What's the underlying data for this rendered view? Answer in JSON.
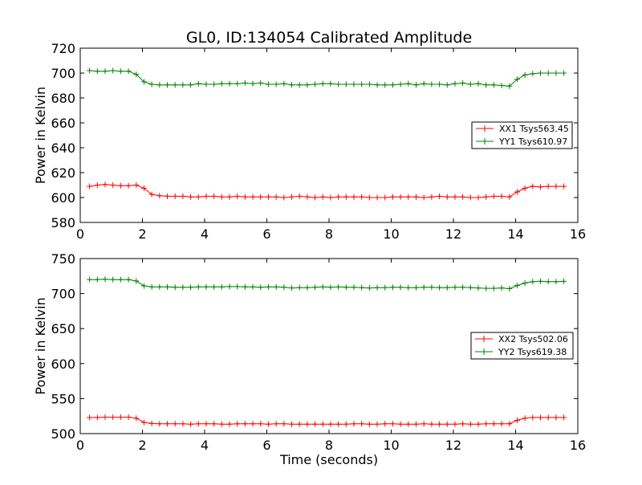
{
  "figure": {
    "title": "GL0, ID:134054 Calibrated Amplitude",
    "xlabel": "Time (seconds)"
  },
  "chart_data": [
    {
      "type": "line",
      "ylabel": "Power in Kelvin",
      "xlim": [
        0,
        16
      ],
      "ylim": [
        580,
        720
      ],
      "xticks": [
        0,
        2,
        4,
        6,
        8,
        10,
        12,
        14,
        16
      ],
      "yticks": [
        580,
        600,
        620,
        640,
        660,
        680,
        700,
        720
      ],
      "grid": false,
      "legend_position": "right",
      "series": [
        {
          "name": "XX1 Tsys563.45",
          "color": "#ff0000",
          "marker": "plus",
          "x": [
            0.3,
            0.55,
            0.8,
            1.05,
            1.3,
            1.55,
            1.8,
            2.05,
            2.3,
            2.55,
            2.8,
            3.05,
            3.3,
            3.55,
            3.8,
            4.05,
            4.3,
            4.55,
            4.8,
            5.05,
            5.3,
            5.55,
            5.8,
            6.05,
            6.3,
            6.55,
            6.8,
            7.05,
            7.3,
            7.55,
            7.8,
            8.05,
            8.3,
            8.55,
            8.8,
            9.05,
            9.3,
            9.55,
            9.8,
            10.05,
            10.3,
            10.55,
            10.8,
            11.05,
            11.3,
            11.55,
            11.8,
            12.05,
            12.3,
            12.55,
            12.8,
            13.05,
            13.3,
            13.55,
            13.8,
            14.05,
            14.3,
            14.55,
            14.8,
            15.05,
            15.3,
            15.55
          ],
          "y": [
            609,
            610,
            610.5,
            610,
            609.5,
            609.5,
            610,
            607.5,
            602.5,
            601.5,
            601,
            601,
            601,
            600.5,
            600.5,
            601,
            601,
            600.5,
            600.5,
            601,
            600.5,
            600.5,
            600.5,
            600.5,
            600.5,
            600,
            600.5,
            601,
            600.5,
            600,
            600.5,
            600,
            600.5,
            600.5,
            600.5,
            600.5,
            600,
            600,
            600,
            600.5,
            600.5,
            600.5,
            600.5,
            600,
            600.5,
            601,
            600.5,
            600.5,
            600.5,
            600,
            600,
            600.5,
            601,
            601,
            600.5,
            604.5,
            607.5,
            609,
            608.5,
            609,
            609,
            609
          ]
        },
        {
          "name": "YY1 Tsys610.97",
          "color": "#008000",
          "marker": "plus",
          "x": [
            0.3,
            0.55,
            0.8,
            1.05,
            1.3,
            1.55,
            1.8,
            2.05,
            2.3,
            2.55,
            2.8,
            3.05,
            3.3,
            3.55,
            3.8,
            4.05,
            4.3,
            4.55,
            4.8,
            5.05,
            5.3,
            5.55,
            5.8,
            6.05,
            6.3,
            6.55,
            6.8,
            7.05,
            7.3,
            7.55,
            7.8,
            8.05,
            8.3,
            8.55,
            8.8,
            9.05,
            9.3,
            9.55,
            9.8,
            10.05,
            10.3,
            10.55,
            10.8,
            11.05,
            11.3,
            11.55,
            11.8,
            12.05,
            12.3,
            12.55,
            12.8,
            13.05,
            13.3,
            13.55,
            13.8,
            14.05,
            14.3,
            14.55,
            14.8,
            15.05,
            15.3,
            15.55
          ],
          "y": [
            702,
            701.5,
            701.5,
            702,
            701.5,
            701.5,
            699,
            693,
            691,
            690.5,
            690.5,
            690.5,
            690.5,
            690.5,
            691.5,
            691,
            691,
            691.5,
            691.5,
            691.5,
            692,
            691.5,
            692,
            691,
            691,
            691.5,
            690.5,
            690.5,
            690.5,
            691,
            691.5,
            691.5,
            691,
            691,
            691,
            691,
            691,
            690.5,
            690.5,
            690.5,
            691,
            691.5,
            690.5,
            691.5,
            691,
            691,
            690.5,
            691.5,
            692,
            691,
            691.5,
            690.5,
            690.5,
            690,
            689.5,
            695,
            698.5,
            699.5,
            700,
            700,
            700,
            700
          ]
        }
      ]
    },
    {
      "type": "line",
      "ylabel": "Power in Kelvin",
      "xlim": [
        0,
        16
      ],
      "ylim": [
        500,
        750
      ],
      "xticks": [
        0,
        2,
        4,
        6,
        8,
        10,
        12,
        14,
        16
      ],
      "yticks": [
        500,
        550,
        600,
        650,
        700,
        750
      ],
      "grid": false,
      "legend_position": "right",
      "series": [
        {
          "name": "XX2 Tsys502.06",
          "color": "#ff0000",
          "marker": "plus",
          "x": [
            0.3,
            0.55,
            0.8,
            1.05,
            1.3,
            1.55,
            1.8,
            2.05,
            2.3,
            2.55,
            2.8,
            3.05,
            3.3,
            3.55,
            3.8,
            4.05,
            4.3,
            4.55,
            4.8,
            5.05,
            5.3,
            5.55,
            5.8,
            6.05,
            6.3,
            6.55,
            6.8,
            7.05,
            7.3,
            7.55,
            7.8,
            8.05,
            8.3,
            8.55,
            8.8,
            9.05,
            9.3,
            9.55,
            9.8,
            10.05,
            10.3,
            10.55,
            10.8,
            11.05,
            11.3,
            11.55,
            11.8,
            12.05,
            12.3,
            12.55,
            12.8,
            13.05,
            13.3,
            13.55,
            13.8,
            14.05,
            14.3,
            14.55,
            14.8,
            15.05,
            15.3,
            15.55
          ],
          "y": [
            523,
            523,
            523.5,
            523.5,
            523.5,
            523.5,
            522,
            516,
            514.5,
            514,
            514,
            514,
            514,
            513.5,
            514,
            514,
            514,
            513.5,
            513.5,
            514,
            514,
            514,
            514,
            513.5,
            514,
            514,
            513.5,
            513.5,
            513.5,
            513.5,
            513.5,
            513.5,
            513.5,
            513.5,
            514,
            514,
            513.5,
            513.5,
            514,
            514,
            513.5,
            513.5,
            513.5,
            514,
            513.5,
            513.5,
            513.5,
            513.5,
            514,
            513.5,
            513.5,
            514,
            514,
            514,
            514,
            519,
            522,
            523,
            523,
            523,
            523,
            523
          ]
        },
        {
          "name": "YY2 Tsys619.38",
          "color": "#008000",
          "marker": "plus",
          "x": [
            0.3,
            0.55,
            0.8,
            1.05,
            1.3,
            1.55,
            1.8,
            2.05,
            2.3,
            2.55,
            2.8,
            3.05,
            3.3,
            3.55,
            3.8,
            4.05,
            4.3,
            4.55,
            4.8,
            5.05,
            5.3,
            5.55,
            5.8,
            6.05,
            6.3,
            6.55,
            6.8,
            7.05,
            7.3,
            7.55,
            7.8,
            8.05,
            8.3,
            8.55,
            8.8,
            9.05,
            9.3,
            9.55,
            9.8,
            10.05,
            10.3,
            10.55,
            10.8,
            11.05,
            11.3,
            11.55,
            11.8,
            12.05,
            12.3,
            12.55,
            12.8,
            13.05,
            13.3,
            13.55,
            13.8,
            14.05,
            14.3,
            14.55,
            14.8,
            15.05,
            15.3,
            15.55
          ],
          "y": [
            720,
            720,
            720.5,
            720,
            720,
            720,
            718,
            711,
            709.5,
            709.5,
            709.5,
            709,
            709,
            709,
            709.5,
            709.5,
            709.5,
            709.5,
            710,
            710,
            709.5,
            709.5,
            709,
            709.5,
            709.5,
            709,
            708,
            708.5,
            708.5,
            709,
            709.5,
            709,
            709.5,
            709,
            709,
            708.5,
            708,
            708.5,
            708.5,
            709,
            709,
            708.5,
            708.5,
            709,
            709,
            708.5,
            708.5,
            709,
            709,
            708.5,
            708,
            707.5,
            707.5,
            708,
            707,
            711.5,
            715,
            717,
            717.5,
            717,
            717,
            717.5
          ]
        }
      ]
    }
  ]
}
